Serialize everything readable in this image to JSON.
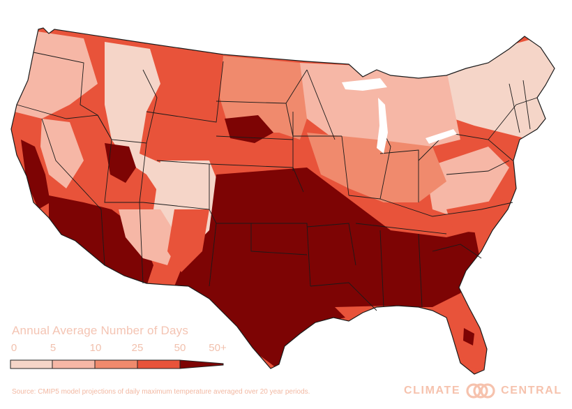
{
  "map": {
    "colors": {
      "c0": "#f5d5c8",
      "c5": "#f6b7a6",
      "c10": "#f08a6d",
      "c25": "#e8533a",
      "c50": "#d12a22",
      "c50plus": "#7d0404",
      "border": "#1a1a1a"
    }
  },
  "legend": {
    "title": "Annual Average Number of Days",
    "ticks": [
      "0",
      "5",
      "10",
      "25",
      "50",
      "50+"
    ],
    "bins": [
      {
        "color": "#f5d5c8"
      },
      {
        "color": "#f6b7a6"
      },
      {
        "color": "#f08a6d"
      },
      {
        "color": "#e8533a"
      },
      {
        "color": "#7d0404"
      }
    ]
  },
  "source_note": "Source: CMIP5 model projections of daily maximum temperature averaged over 20 year periods.",
  "brand": {
    "left_word": "CLIMATE",
    "right_word": "CENTRAL",
    "color": "#f6c2ad"
  }
}
